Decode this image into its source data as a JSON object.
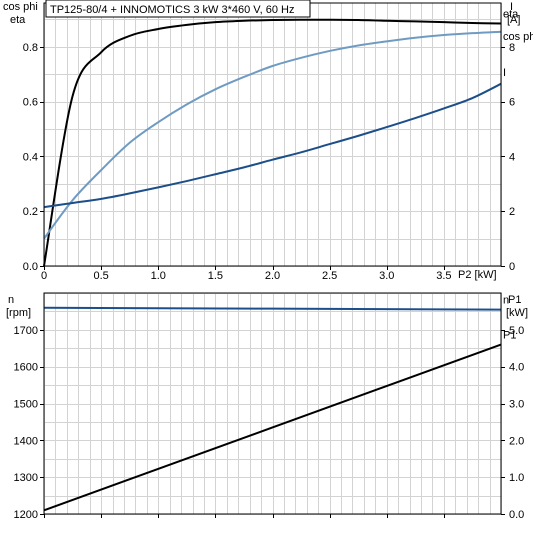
{
  "title": "TP125-80/4 + INNOMOTICS   3 kW   3*460 V, 60 Hz",
  "chart_data": [
    {
      "type": "line",
      "x": [
        0,
        0.25,
        0.5,
        0.75,
        1.0,
        1.25,
        1.5,
        1.75,
        2.0,
        2.25,
        2.5,
        2.75,
        3.0,
        3.25,
        3.5,
        3.75,
        4.0
      ],
      "xlabel": "P2 [kW]",
      "xlim": [
        0,
        4.0
      ],
      "xticks": [
        "0",
        "0.5",
        "1.0",
        "1.5",
        "2.0",
        "2.5",
        "3.0",
        "3.5"
      ],
      "ylabel_left": [
        "cos phi",
        "eta"
      ],
      "ylim_left": [
        0,
        0.96
      ],
      "yticks_left": [
        "0.0",
        "0.2",
        "0.4",
        "0.6",
        "0.8"
      ],
      "ylabel_right": [
        "I",
        "[A]"
      ],
      "ylim_right": [
        0,
        9.6
      ],
      "yticks_right": [
        "0",
        "2",
        "4",
        "6",
        "8"
      ],
      "grid": true,
      "series": [
        {
          "name": "eta",
          "axis": "left",
          "color": "#000000",
          "values": [
            0,
            0.62,
            0.78,
            0.84,
            0.865,
            0.88,
            0.89,
            0.895,
            0.898,
            0.899,
            0.899,
            0.898,
            0.895,
            0.893,
            0.89,
            0.887,
            0.885
          ]
        },
        {
          "name": "cos phi",
          "axis": "left",
          "color": "#6f9bc3",
          "values": [
            0.1,
            0.24,
            0.35,
            0.45,
            0.525,
            0.59,
            0.645,
            0.69,
            0.73,
            0.76,
            0.785,
            0.805,
            0.82,
            0.833,
            0.843,
            0.85,
            0.855
          ]
        },
        {
          "name": "I",
          "axis": "right",
          "color": "#1c4f8a",
          "values": [
            2.15,
            2.3,
            2.45,
            2.65,
            2.87,
            3.1,
            3.35,
            3.6,
            3.88,
            4.15,
            4.45,
            4.75,
            5.07,
            5.4,
            5.75,
            6.13,
            6.65
          ]
        }
      ]
    },
    {
      "type": "line",
      "x": [
        0,
        4.0
      ],
      "xlim": [
        0,
        4.0
      ],
      "ylabel_left": [
        "n",
        "[rpm]"
      ],
      "ylim_left": [
        1200,
        1800
      ],
      "yticks_left": [
        "1200",
        "1300",
        "1400",
        "1500",
        "1600",
        "1700"
      ],
      "ylabel_right": [
        "P1",
        "[kW]"
      ],
      "ylim_right": [
        0,
        6.0
      ],
      "yticks_right": [
        "0.0",
        "1.0",
        "2.0",
        "3.0",
        "4.0",
        "5.0"
      ],
      "grid": true,
      "series": [
        {
          "name": "n",
          "axis": "left",
          "color": "#1c4f8a",
          "values": [
            1760,
            1755
          ]
        },
        {
          "name": "P1",
          "axis": "right",
          "color": "#000000",
          "values": [
            0.1,
            4.6
          ]
        }
      ]
    }
  ]
}
